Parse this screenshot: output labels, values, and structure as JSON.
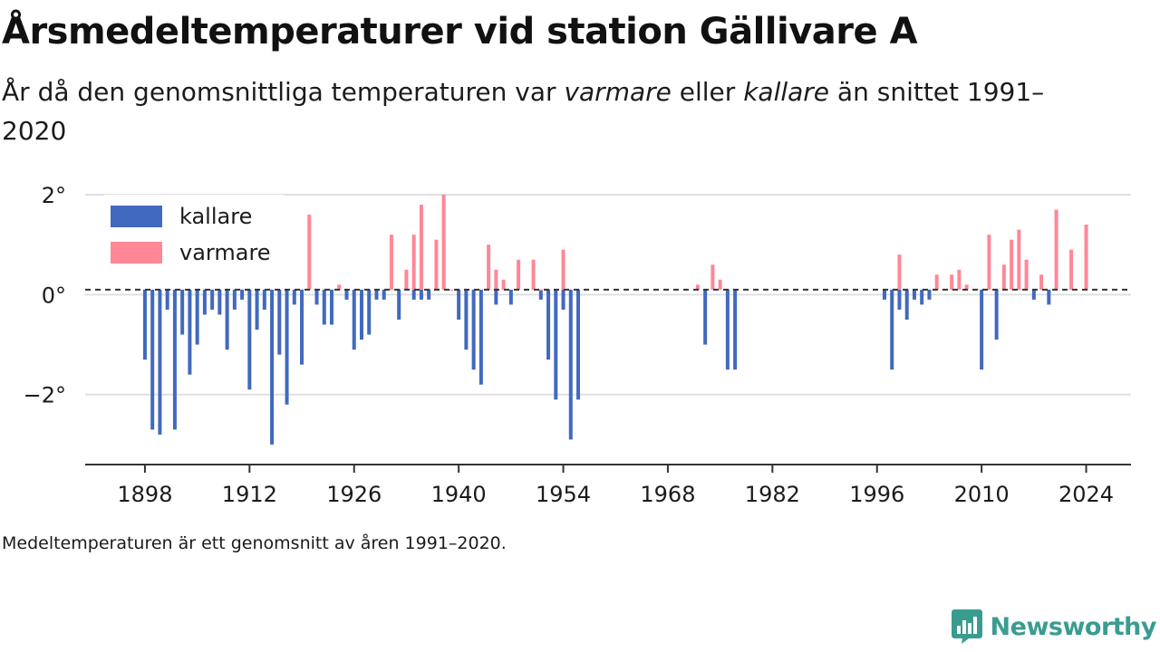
{
  "title": "Årsmedeltemperaturer vid station Gällivare A",
  "subtitle": {
    "part1": "År då den genomsnittliga temperaturen var ",
    "warm_word": "varmare",
    "part2": " eller ",
    "cold_word": "kallare",
    "part3": " än snittet 1991–2020"
  },
  "footnote": "Medeltemperaturen är ett genomsnitt av åren 1991–2020.",
  "brand": {
    "name": "Newsworthy",
    "color": "#3a9c8f",
    "icon": "bar-chart-speech-bubble-icon"
  },
  "colors": {
    "kallare": "#4169be",
    "varmare": "#ff8796",
    "reference_line": "#333333",
    "grid": "#e0e0e0",
    "axis": "#333333"
  },
  "chart_data": {
    "type": "bar",
    "xlabel": "",
    "ylabel": "",
    "xlim": [
      1890,
      2030
    ],
    "ylim": [
      -3.4,
      2.0
    ],
    "reference_line": 0.1,
    "grid": true,
    "legend_position": "top-left",
    "legend": [
      {
        "key": "kallare",
        "label": "kallare"
      },
      {
        "key": "varmare",
        "label": "varmare"
      }
    ],
    "x_ticks": [
      {
        "value": 1898,
        "label": "1898"
      },
      {
        "value": 1912,
        "label": "1912"
      },
      {
        "value": 1926,
        "label": "1926"
      },
      {
        "value": 1940,
        "label": "1940"
      },
      {
        "value": 1954,
        "label": "1954"
      },
      {
        "value": 1968,
        "label": "1968"
      },
      {
        "value": 1982,
        "label": "1982"
      },
      {
        "value": 1996,
        "label": "1996"
      },
      {
        "value": 2010,
        "label": "2010"
      },
      {
        "value": 2024,
        "label": "2024"
      }
    ],
    "y_ticks": [
      {
        "value": 2,
        "label": "2°"
      },
      {
        "value": 0,
        "label": "0°"
      },
      {
        "value": -2,
        "label": "−2°"
      }
    ],
    "series": [
      {
        "name": "kallare",
        "x": [
          1898,
          1899,
          1900,
          1901,
          1902,
          1903,
          1904,
          1905,
          1906,
          1907,
          1908,
          1909,
          1910,
          1911,
          1912,
          1913,
          1914,
          1915,
          1916,
          1917,
          1918,
          1919,
          1921,
          1922,
          1923,
          1925,
          1926,
          1927,
          1928,
          1929,
          1930,
          1932,
          1934,
          1935,
          1936,
          1940,
          1941,
          1942,
          1943,
          1945,
          1947,
          1951,
          1952,
          1953,
          1954,
          1955,
          1956,
          1973,
          1976,
          1977,
          1997,
          1998,
          1999,
          2000,
          2001,
          2002,
          2003,
          2010,
          2012,
          2017,
          2019
        ],
        "values": [
          -1.3,
          -2.7,
          -2.8,
          -0.3,
          -2.7,
          -0.8,
          -1.6,
          -1.0,
          -0.4,
          -0.3,
          -0.4,
          -1.1,
          -0.3,
          -0.1,
          -1.9,
          -0.7,
          -0.3,
          -3.0,
          -1.2,
          -2.2,
          -0.2,
          -1.4,
          -0.2,
          -0.6,
          -0.6,
          -0.1,
          -1.1,
          -0.9,
          -0.8,
          -0.1,
          -0.1,
          -0.5,
          -0.1,
          -0.1,
          -0.1,
          -0.5,
          -1.1,
          -1.5,
          -1.8,
          -0.2,
          -0.2,
          -0.1,
          -1.3,
          -2.1,
          -0.3,
          -2.9,
          -2.1,
          -1.0,
          -1.5,
          -1.5,
          -0.1,
          -1.5,
          -0.3,
          -0.5,
          -0.1,
          -0.2,
          -0.1,
          -1.5,
          -0.9,
          -0.1,
          -0.2
        ]
      },
      {
        "name": "varmare",
        "x": [
          1920,
          1924,
          1931,
          1933,
          1934,
          1935,
          1937,
          1938,
          1939,
          1944,
          1945,
          1946,
          1948,
          1950,
          1951,
          1954,
          1972,
          1974,
          1975,
          1999,
          2004,
          2005,
          2006,
          2007,
          2008,
          2011,
          2013,
          2014,
          2015,
          2016,
          2018,
          2020,
          2022,
          2024
        ],
        "values": [
          1.6,
          0.2,
          1.2,
          0.5,
          1.2,
          1.8,
          1.1,
          2.0,
          0.1,
          1.0,
          0.5,
          0.3,
          0.7,
          0.7,
          0.1,
          0.9,
          0.2,
          0.6,
          0.3,
          0.8,
          0.4,
          0.1,
          0.4,
          0.5,
          0.2,
          1.2,
          0.6,
          1.1,
          1.3,
          0.7,
          0.4,
          1.7,
          0.9,
          1.4
        ]
      }
    ]
  }
}
